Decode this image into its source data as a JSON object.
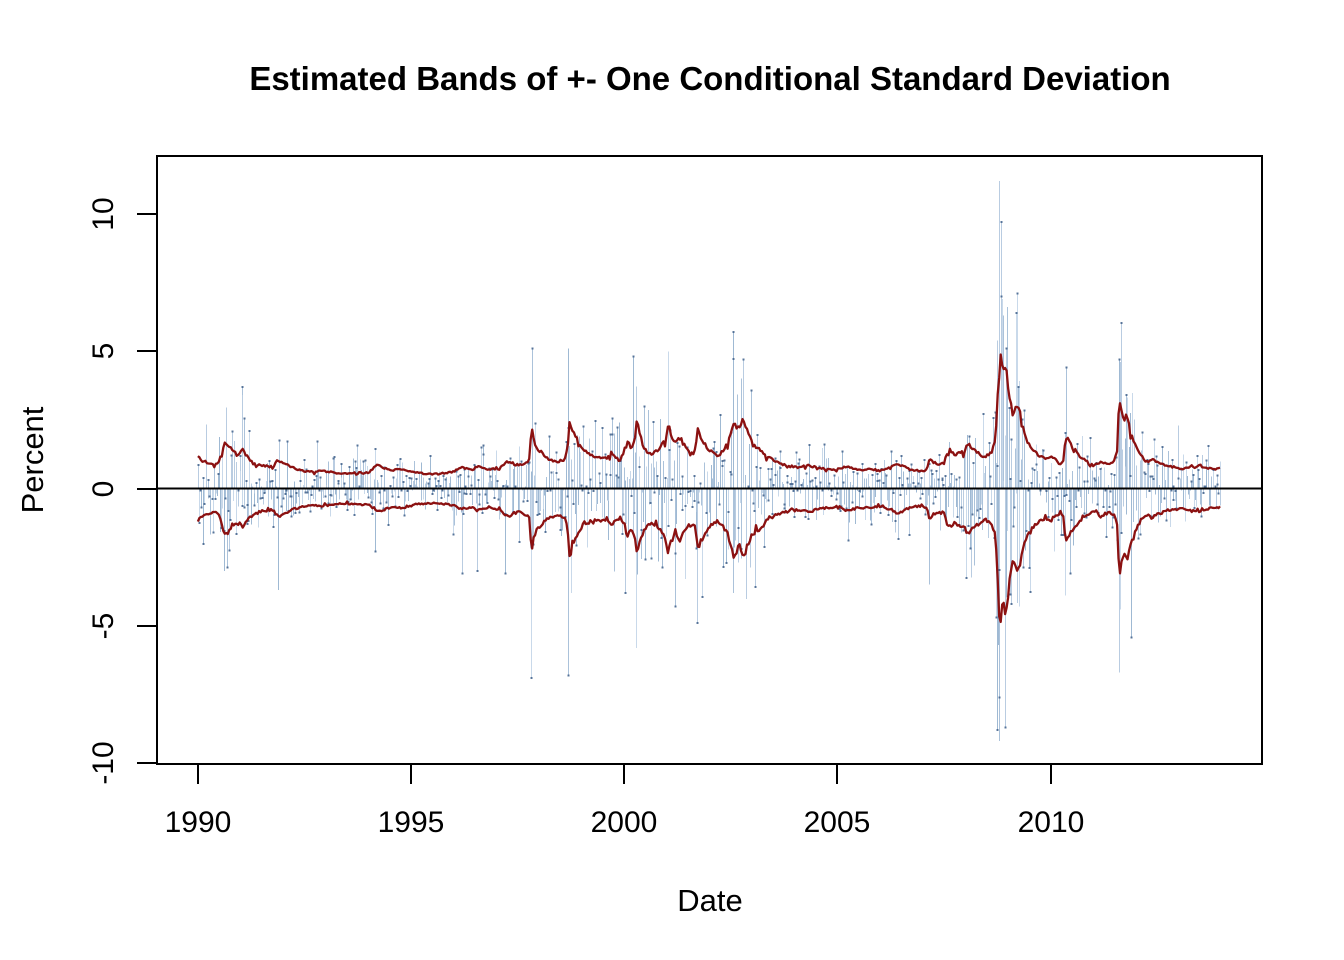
{
  "chart_data": {
    "type": "line",
    "title": "Estimated Bands of +- One Conditional Standard Deviation",
    "xlabel": "Date",
    "ylabel": "Percent",
    "x_ticks": [
      1990,
      1995,
      2000,
      2005,
      2010
    ],
    "x_tick_labels": [
      "1990",
      "1995",
      "2000",
      "2005",
      "2010"
    ],
    "y_ticks": [
      10,
      5,
      0,
      -5,
      -10
    ],
    "y_tick_labels": [
      "10",
      "5",
      "0",
      "-5",
      "-10"
    ],
    "xlim": [
      1989.04,
      2014.96
    ],
    "ylim": [
      -10.03,
      12.11
    ],
    "grid": false,
    "legend": null,
    "zero_line": 0,
    "frame_color": "#000000",
    "background": "#ffffff",
    "series": [
      {
        "name": "daily-returns",
        "type": "vertical-bars",
        "span_years": [
          1990.0,
          2014.0
        ],
        "bars_drawn": 1000,
        "palette": [
          "#9FB9D3",
          "#ABC2DA",
          "#B9CCE1",
          "#C9D9EA"
        ],
        "tip_dot_color": "#3E5F8A",
        "seed": 42
      },
      {
        "name": "plus-one-conditional-sd",
        "type": "line",
        "color": "#8B1111",
        "width": 2.3
      },
      {
        "name": "minus-one-conditional-sd",
        "type": "line",
        "color": "#8B1111",
        "width": 2.3,
        "mirror_of": "plus-one-conditional-sd"
      }
    ],
    "conditional_sd_points": [
      [
        1990.0,
        1.15
      ],
      [
        1990.1,
        1.0
      ],
      [
        1990.2,
        0.95
      ],
      [
        1990.3,
        0.9
      ],
      [
        1990.4,
        0.85
      ],
      [
        1990.5,
        0.95
      ],
      [
        1990.58,
        1.45
      ],
      [
        1990.65,
        1.7
      ],
      [
        1990.72,
        1.55
      ],
      [
        1990.8,
        1.4
      ],
      [
        1990.9,
        1.25
      ],
      [
        1991.0,
        1.3
      ],
      [
        1991.05,
        1.45
      ],
      [
        1991.12,
        1.25
      ],
      [
        1991.2,
        1.05
      ],
      [
        1991.3,
        0.95
      ],
      [
        1991.4,
        0.88
      ],
      [
        1991.5,
        0.82
      ],
      [
        1991.6,
        0.85
      ],
      [
        1991.7,
        0.8
      ],
      [
        1991.8,
        0.85
      ],
      [
        1991.88,
        1.05
      ],
      [
        1991.95,
        0.95
      ],
      [
        1992.1,
        0.85
      ],
      [
        1992.25,
        0.75
      ],
      [
        1992.4,
        0.68
      ],
      [
        1992.55,
        0.62
      ],
      [
        1992.7,
        0.6
      ],
      [
        1992.85,
        0.65
      ],
      [
        1993.0,
        0.62
      ],
      [
        1993.2,
        0.58
      ],
      [
        1993.4,
        0.55
      ],
      [
        1993.6,
        0.55
      ],
      [
        1993.8,
        0.6
      ],
      [
        1994.0,
        0.58
      ],
      [
        1994.1,
        0.72
      ],
      [
        1994.2,
        0.85
      ],
      [
        1994.3,
        0.8
      ],
      [
        1994.45,
        0.72
      ],
      [
        1994.6,
        0.68
      ],
      [
        1994.8,
        0.7
      ],
      [
        1994.95,
        0.65
      ],
      [
        1995.1,
        0.58
      ],
      [
        1995.3,
        0.55
      ],
      [
        1995.5,
        0.53
      ],
      [
        1995.7,
        0.55
      ],
      [
        1995.9,
        0.58
      ],
      [
        1996.0,
        0.62
      ],
      [
        1996.1,
        0.7
      ],
      [
        1996.2,
        0.78
      ],
      [
        1996.3,
        0.72
      ],
      [
        1996.45,
        0.68
      ],
      [
        1996.55,
        0.82
      ],
      [
        1996.65,
        0.75
      ],
      [
        1996.8,
        0.7
      ],
      [
        1996.95,
        0.72
      ],
      [
        1997.1,
        0.8
      ],
      [
        1997.22,
        0.95
      ],
      [
        1997.3,
        1.0
      ],
      [
        1997.4,
        0.9
      ],
      [
        1997.55,
        0.85
      ],
      [
        1997.7,
        0.95
      ],
      [
        1997.78,
        1.05
      ],
      [
        1997.82,
        2.3
      ],
      [
        1997.86,
        1.9
      ],
      [
        1997.92,
        1.6
      ],
      [
        1998.0,
        1.4
      ],
      [
        1998.1,
        1.25
      ],
      [
        1998.2,
        1.12
      ],
      [
        1998.3,
        1.02
      ],
      [
        1998.4,
        0.98
      ],
      [
        1998.5,
        1.02
      ],
      [
        1998.6,
        1.05
      ],
      [
        1998.66,
        1.4
      ],
      [
        1998.72,
        2.5
      ],
      [
        1998.78,
        2.2
      ],
      [
        1998.85,
        1.95
      ],
      [
        1998.93,
        1.62
      ],
      [
        1999.0,
        1.45
      ],
      [
        1999.1,
        1.35
      ],
      [
        1999.2,
        1.28
      ],
      [
        1999.3,
        1.2
      ],
      [
        1999.4,
        1.12
      ],
      [
        1999.5,
        1.18
      ],
      [
        1999.6,
        1.1
      ],
      [
        1999.7,
        1.3
      ],
      [
        1999.8,
        1.15
      ],
      [
        1999.9,
        1.05
      ],
      [
        2000.0,
        1.4
      ],
      [
        2000.07,
        1.75
      ],
      [
        2000.15,
        1.5
      ],
      [
        2000.24,
        1.7
      ],
      [
        2000.3,
        2.5
      ],
      [
        2000.37,
        1.9
      ],
      [
        2000.45,
        1.55
      ],
      [
        2000.55,
        1.3
      ],
      [
        2000.65,
        1.25
      ],
      [
        2000.75,
        1.38
      ],
      [
        2000.85,
        1.5
      ],
      [
        2000.95,
        1.72
      ],
      [
        2001.03,
        2.35
      ],
      [
        2001.1,
        1.92
      ],
      [
        2001.2,
        1.7
      ],
      [
        2001.28,
        1.95
      ],
      [
        2001.38,
        1.62
      ],
      [
        2001.5,
        1.38
      ],
      [
        2001.6,
        1.28
      ],
      [
        2001.67,
        1.38
      ],
      [
        2001.73,
        2.25
      ],
      [
        2001.8,
        1.9
      ],
      [
        2001.9,
        1.58
      ],
      [
        2002.0,
        1.38
      ],
      [
        2002.1,
        1.28
      ],
      [
        2002.2,
        1.22
      ],
      [
        2002.3,
        1.35
      ],
      [
        2002.4,
        1.55
      ],
      [
        2002.5,
        2.0
      ],
      [
        2002.57,
        2.65
      ],
      [
        2002.63,
        2.28
      ],
      [
        2002.7,
        2.1
      ],
      [
        2002.78,
        2.5
      ],
      [
        2002.85,
        2.3
      ],
      [
        2002.93,
        1.88
      ],
      [
        2003.0,
        1.7
      ],
      [
        2003.08,
        1.55
      ],
      [
        2003.17,
        1.48
      ],
      [
        2003.25,
        1.35
      ],
      [
        2003.35,
        1.15
      ],
      [
        2003.5,
        1.02
      ],
      [
        2003.65,
        0.92
      ],
      [
        2003.8,
        0.85
      ],
      [
        2003.95,
        0.8
      ],
      [
        2004.1,
        0.78
      ],
      [
        2004.25,
        0.82
      ],
      [
        2004.35,
        0.85
      ],
      [
        2004.5,
        0.76
      ],
      [
        2004.65,
        0.72
      ],
      [
        2004.8,
        0.7
      ],
      [
        2004.95,
        0.7
      ],
      [
        2005.1,
        0.74
      ],
      [
        2005.25,
        0.8
      ],
      [
        2005.35,
        0.76
      ],
      [
        2005.5,
        0.68
      ],
      [
        2005.65,
        0.7
      ],
      [
        2005.8,
        0.7
      ],
      [
        2005.95,
        0.66
      ],
      [
        2006.1,
        0.7
      ],
      [
        2006.25,
        0.75
      ],
      [
        2006.4,
        0.92
      ],
      [
        2006.5,
        0.85
      ],
      [
        2006.65,
        0.72
      ],
      [
        2006.8,
        0.66
      ],
      [
        2006.95,
        0.64
      ],
      [
        2007.1,
        0.68
      ],
      [
        2007.16,
        1.1
      ],
      [
        2007.25,
        0.95
      ],
      [
        2007.35,
        0.88
      ],
      [
        2007.5,
        0.92
      ],
      [
        2007.57,
        1.25
      ],
      [
        2007.65,
        1.4
      ],
      [
        2007.75,
        1.22
      ],
      [
        2007.85,
        1.38
      ],
      [
        2007.95,
        1.32
      ],
      [
        2008.05,
        1.62
      ],
      [
        2008.15,
        1.5
      ],
      [
        2008.25,
        1.38
      ],
      [
        2008.35,
        1.25
      ],
      [
        2008.45,
        1.12
      ],
      [
        2008.55,
        1.22
      ],
      [
        2008.62,
        1.32
      ],
      [
        2008.7,
        1.7
      ],
      [
        2008.74,
        2.6
      ],
      [
        2008.78,
        4.2
      ],
      [
        2008.82,
        5.05
      ],
      [
        2008.87,
        4.35
      ],
      [
        2008.92,
        4.3
      ],
      [
        2008.95,
        4.7
      ],
      [
        2009.0,
        3.9
      ],
      [
        2009.05,
        3.2
      ],
      [
        2009.1,
        2.7
      ],
      [
        2009.17,
        2.9
      ],
      [
        2009.23,
        3.05
      ],
      [
        2009.32,
        2.45
      ],
      [
        2009.42,
        1.85
      ],
      [
        2009.52,
        1.58
      ],
      [
        2009.62,
        1.35
      ],
      [
        2009.75,
        1.2
      ],
      [
        2009.88,
        1.1
      ],
      [
        2010.0,
        1.18
      ],
      [
        2010.1,
        1.05
      ],
      [
        2010.22,
        0.88
      ],
      [
        2010.3,
        1.05
      ],
      [
        2010.36,
        1.9
      ],
      [
        2010.45,
        1.65
      ],
      [
        2010.55,
        1.45
      ],
      [
        2010.65,
        1.25
      ],
      [
        2010.78,
        1.05
      ],
      [
        2010.9,
        0.92
      ],
      [
        2011.0,
        0.85
      ],
      [
        2011.1,
        0.9
      ],
      [
        2011.18,
        1.02
      ],
      [
        2011.28,
        0.92
      ],
      [
        2011.38,
        0.88
      ],
      [
        2011.48,
        0.95
      ],
      [
        2011.56,
        1.3
      ],
      [
        2011.61,
        3.2
      ],
      [
        2011.66,
        2.75
      ],
      [
        2011.72,
        2.45
      ],
      [
        2011.78,
        2.6
      ],
      [
        2011.85,
        2.25
      ],
      [
        2011.93,
        1.85
      ],
      [
        2012.0,
        1.5
      ],
      [
        2012.08,
        1.28
      ],
      [
        2012.17,
        1.1
      ],
      [
        2012.25,
        0.95
      ],
      [
        2012.33,
        1.02
      ],
      [
        2012.42,
        1.1
      ],
      [
        2012.5,
        0.95
      ],
      [
        2012.6,
        0.88
      ],
      [
        2012.7,
        0.82
      ],
      [
        2012.8,
        0.8
      ],
      [
        2012.9,
        0.78
      ],
      [
        2013.0,
        0.76
      ],
      [
        2013.1,
        0.72
      ],
      [
        2013.2,
        0.78
      ],
      [
        2013.3,
        0.82
      ],
      [
        2013.4,
        0.78
      ],
      [
        2013.47,
        0.88
      ],
      [
        2013.55,
        0.8
      ],
      [
        2013.65,
        0.74
      ],
      [
        2013.75,
        0.72
      ],
      [
        2013.85,
        0.7
      ],
      [
        2013.95,
        0.72
      ],
      [
        2014.0,
        0.73
      ]
    ],
    "outlier_returns": [
      [
        1990.62,
        -3.0
      ],
      [
        1991.04,
        3.7
      ],
      [
        1991.88,
        -3.7
      ],
      [
        1994.15,
        -2.3
      ],
      [
        1996.2,
        -3.1
      ],
      [
        1996.55,
        -3.0
      ],
      [
        1997.21,
        -3.1
      ],
      [
        1997.82,
        -6.9
      ],
      [
        1997.84,
        5.1
      ],
      [
        1998.67,
        -6.8
      ],
      [
        1998.69,
        5.1
      ],
      [
        1998.75,
        -3.8
      ],
      [
        2000.01,
        -3.8
      ],
      [
        2000.21,
        4.8
      ],
      [
        2000.28,
        -5.8
      ],
      [
        2001.03,
        5.0
      ],
      [
        2001.19,
        -4.3
      ],
      [
        2001.71,
        -4.9
      ],
      [
        2002.55,
        -3.8
      ],
      [
        2002.56,
        5.7
      ],
      [
        2002.75,
        4.0
      ],
      [
        2002.79,
        4.7
      ],
      [
        2007.16,
        -3.5
      ],
      [
        2008.71,
        -4.7
      ],
      [
        2008.74,
        -8.8
      ],
      [
        2008.75,
        5.4
      ],
      [
        2008.77,
        -5.7
      ],
      [
        2008.785,
        -7.6
      ],
      [
        2008.79,
        11.2
      ],
      [
        2008.8,
        -9.2
      ],
      [
        2008.83,
        9.7
      ],
      [
        2008.87,
        6.9
      ],
      [
        2008.89,
        6.3
      ],
      [
        2008.92,
        -8.7
      ],
      [
        2008.96,
        5.1
      ],
      [
        2009.07,
        -4.2
      ],
      [
        2009.18,
        6.4
      ],
      [
        2009.22,
        7.1
      ],
      [
        2009.26,
        -4.3
      ],
      [
        2010.35,
        -3.9
      ],
      [
        2010.36,
        4.4
      ],
      [
        2011.6,
        -6.7
      ],
      [
        2011.61,
        4.7
      ],
      [
        2011.62,
        -4.4
      ],
      [
        2011.63,
        4.6
      ],
      [
        2011.77,
        3.4
      ],
      [
        2013.0,
        2.3
      ]
    ]
  }
}
